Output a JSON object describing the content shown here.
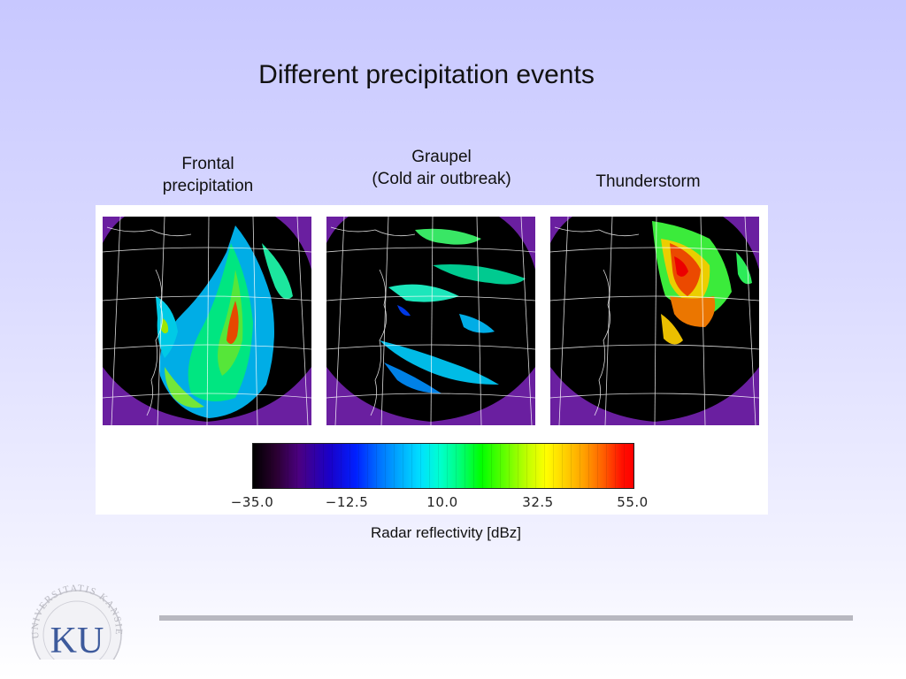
{
  "slide": {
    "title": "Different precipitation events",
    "caption": "Radar reflectivity [dBz]"
  },
  "panels": [
    {
      "label_lines": [
        "Frontal",
        "precipitation"
      ]
    },
    {
      "label_lines": [
        "Graupel",
        "(Cold air outbreak)"
      ]
    },
    {
      "label_lines": [
        "Thunderstorm"
      ]
    }
  ],
  "colorbar": {
    "ticks": [
      "−35.0",
      "−12.5",
      "10.0",
      "32.5",
      "55.0"
    ],
    "tick_values": [
      -35.0,
      -12.5,
      10.0,
      32.5,
      55.0
    ],
    "range": [
      -35.0,
      55.0
    ]
  },
  "logo": {
    "text": "KU",
    "ring_text": "UNIVERSITATIS KANSIENSIS"
  },
  "colors": {
    "background_top": "#c8c8ff",
    "radar_background": "#000000",
    "outside_coverage": "#6a1fa0",
    "map_lines": "#ffffff",
    "logo_blue": "#3d5a9c"
  }
}
